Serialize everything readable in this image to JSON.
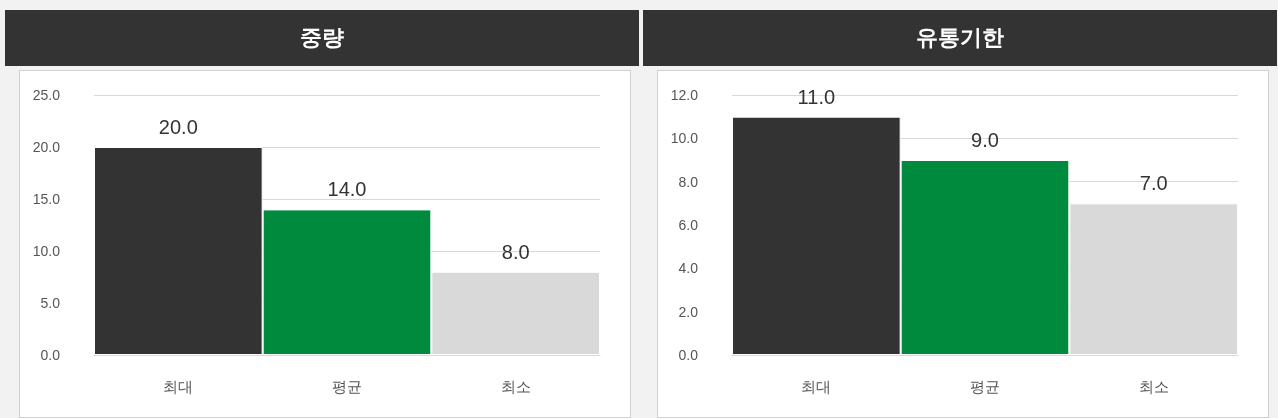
{
  "chart_data": [
    {
      "type": "bar",
      "title": "중량",
      "categories": [
        "최대",
        "평균",
        "최소"
      ],
      "values": [
        20,
        14,
        8
      ],
      "colors": [
        "#333333",
        "#008a3e",
        "#d9d9d9"
      ],
      "value_labels": [
        "20.0",
        "14.0",
        "8.0"
      ],
      "ylim": [
        0,
        25
      ],
      "yticks": [
        {
          "value": 0,
          "label": "0.0"
        },
        {
          "value": 5,
          "label": "5.0"
        },
        {
          "value": 10,
          "label": "10.0"
        },
        {
          "value": 15,
          "label": "15.0"
        },
        {
          "value": 20,
          "label": "20.0"
        },
        {
          "value": 25,
          "label": "25.0"
        }
      ],
      "grid": "y"
    },
    {
      "type": "bar",
      "title": "유통기한",
      "categories": [
        "최대",
        "평균",
        "최소"
      ],
      "values": [
        11,
        9,
        7
      ],
      "colors": [
        "#333333",
        "#008a3e",
        "#d9d9d9"
      ],
      "value_labels": [
        "11.0",
        "9.0",
        "7.0"
      ],
      "ylim": [
        0,
        12
      ],
      "yticks": [
        {
          "value": 0,
          "label": "0.0"
        },
        {
          "value": 2,
          "label": "2.0"
        },
        {
          "value": 4,
          "label": "4.0"
        },
        {
          "value": 6,
          "label": "6.0"
        },
        {
          "value": 8,
          "label": "8.0"
        },
        {
          "value": 10,
          "label": "10.0"
        },
        {
          "value": 12,
          "label": "12.0"
        }
      ],
      "grid": "y"
    }
  ]
}
